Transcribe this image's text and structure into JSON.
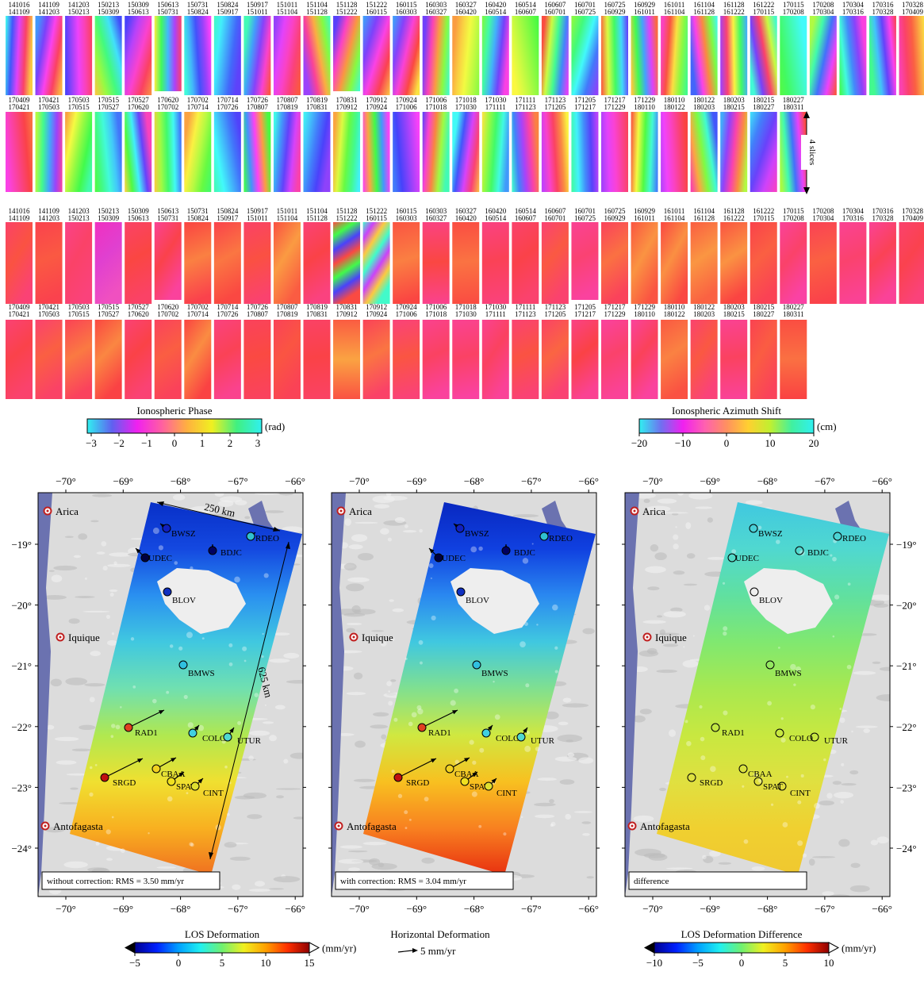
{
  "thumbnail_pairs": [
    [
      "141016",
      "141109"
    ],
    [
      "141109",
      "141203"
    ],
    [
      "141203",
      "150213"
    ],
    [
      "150213",
      "150309"
    ],
    [
      "150309",
      "150613"
    ],
    [
      "150613",
      "150731"
    ],
    [
      "150731",
      "150824"
    ],
    [
      "150824",
      "150917"
    ],
    [
      "150917",
      "151011"
    ],
    [
      "151011",
      "151104"
    ],
    [
      "151104",
      "151128"
    ],
    [
      "151128",
      "151222"
    ],
    [
      "151222",
      "160115"
    ],
    [
      "160115",
      "160303"
    ],
    [
      "160303",
      "160327"
    ],
    [
      "160327",
      "160420"
    ],
    [
      "160420",
      "160514"
    ],
    [
      "160514",
      "160607"
    ],
    [
      "160607",
      "160701"
    ],
    [
      "160701",
      "160725"
    ],
    [
      "160725",
      "160929"
    ],
    [
      "160929",
      "161011"
    ],
    [
      "161011",
      "161104"
    ],
    [
      "161104",
      "161128"
    ],
    [
      "161128",
      "161222"
    ],
    [
      "161222",
      "170115"
    ],
    [
      "170115",
      "170208"
    ],
    [
      "170208",
      "170304"
    ],
    [
      "170304",
      "170316"
    ],
    [
      "170316",
      "170328"
    ],
    [
      "170328",
      "170409"
    ],
    [
      "170409",
      "170421"
    ],
    [
      "170421",
      "170503"
    ],
    [
      "170503",
      "170515"
    ],
    [
      "170515",
      "170527"
    ],
    [
      "170527",
      "170620"
    ],
    [
      "170620",
      "170702"
    ],
    [
      "170702",
      "170714"
    ],
    [
      "170714",
      "170726"
    ],
    [
      "170726",
      "170807"
    ],
    [
      "170807",
      "170819"
    ],
    [
      "170819",
      "170831"
    ],
    [
      "170831",
      "170912"
    ],
    [
      "170912",
      "170924"
    ],
    [
      "170924",
      "171006"
    ],
    [
      "171006",
      "171018"
    ],
    [
      "171018",
      "171030"
    ],
    [
      "171030",
      "171111"
    ],
    [
      "171111",
      "171123"
    ],
    [
      "171123",
      "171205"
    ],
    [
      "171205",
      "171217"
    ],
    [
      "171217",
      "171229"
    ],
    [
      "171229",
      "180110"
    ],
    [
      "180110",
      "180122"
    ],
    [
      "180122",
      "180203"
    ],
    [
      "180203",
      "180215"
    ],
    [
      "180215",
      "180227"
    ],
    [
      "180227",
      "180311"
    ]
  ],
  "slices_label": "4 slices",
  "phase_colorbar": {
    "title": "Ionospheric Phase",
    "unit": "(rad)",
    "ticks": [
      "−3",
      "−2",
      "−1",
      "0",
      "1",
      "2",
      "3"
    ]
  },
  "azimuth_colorbar": {
    "title": "Ionospheric Azimuth Shift",
    "unit": "(cm)",
    "ticks": [
      "−20",
      "−10",
      "0",
      "10",
      "20"
    ]
  },
  "maps": {
    "lon_labels": [
      "−70°",
      "−69°",
      "−68°",
      "−67°",
      "−66°"
    ],
    "lat_labels": [
      "−19°",
      "−20°",
      "−21°",
      "−22°",
      "−23°",
      "−24°"
    ],
    "cities": [
      "Arica",
      "Iquique",
      "Antofagasta"
    ],
    "stations": [
      "BWSZ",
      "UDEC",
      "BDJC",
      "RDEO",
      "BLOV",
      "BMWS",
      "RAD1",
      "COLO",
      "UTUR",
      "SRGD",
      "CBAA",
      "SPAT",
      "CINT"
    ],
    "width_label": "250 km",
    "length_label": "625 km",
    "panels": [
      {
        "caption": "without correction:  RMS = 3.50 mm/yr"
      },
      {
        "caption": "with correction:  RMS = 3.04 mm/yr"
      },
      {
        "caption": "difference"
      }
    ]
  },
  "los_colorbar": {
    "title": "LOS Deformation",
    "unit": "(mm/yr)",
    "ticks": [
      "−5",
      "0",
      "5",
      "10",
      "15"
    ]
  },
  "horizontal_legend": {
    "title": "Horizontal Deformation",
    "scale_label": "5 mm/yr"
  },
  "difference_colorbar": {
    "title": "LOS Deformation Difference",
    "unit": "(mm/yr)",
    "ticks": [
      "−10",
      "−5",
      "0",
      "5",
      "10"
    ]
  }
}
